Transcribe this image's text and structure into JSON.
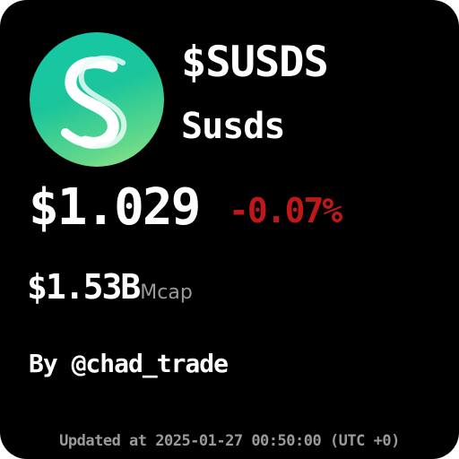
{
  "token": {
    "icon": "sky-s-logo-icon",
    "ticker": "$SUSDS",
    "name": "Susds"
  },
  "price": {
    "value": "$1.029",
    "change": "-0.07%"
  },
  "market_cap": {
    "value": "$1.53B",
    "label": "Mcap"
  },
  "author": "By @chad_trade",
  "updated": "Updated at 2025-01-27 00:50:00 (UTC +0)",
  "colors": {
    "background": "#000000",
    "text": "#ffffff",
    "negative": "#c01818",
    "muted": "#9a9a9a",
    "logo_gradient_start": "#14c8a8",
    "logo_gradient_end": "#9be58a"
  }
}
